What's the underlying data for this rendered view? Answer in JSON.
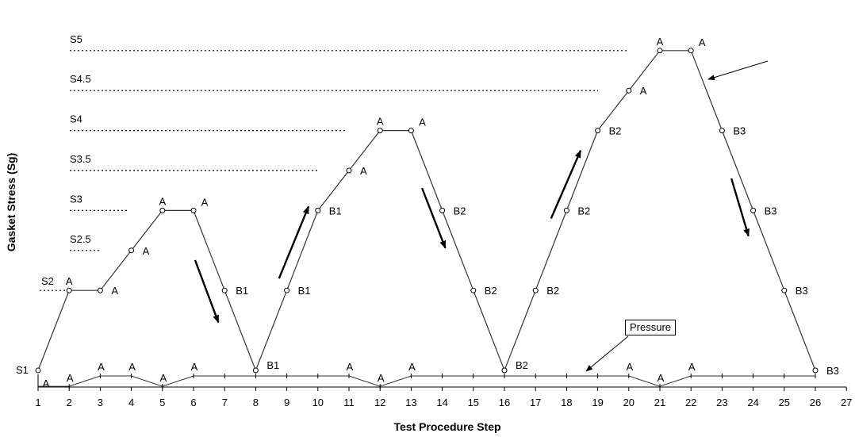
{
  "chart_data": {
    "type": "line",
    "xlabel": "Test Procedure Step",
    "ylabel": "Gasket Stress (Sg)",
    "xlim": [
      1,
      27
    ],
    "x_ticks": [
      1,
      2,
      3,
      4,
      5,
      6,
      7,
      8,
      9,
      10,
      11,
      12,
      13,
      14,
      15,
      16,
      17,
      18,
      19,
      20,
      21,
      22,
      23,
      24,
      25,
      26,
      27
    ],
    "stress_levels": [
      {
        "label": "S1",
        "value": 1.0
      },
      {
        "label": "S2",
        "value": 2.0
      },
      {
        "label": "S2.5",
        "value": 2.5
      },
      {
        "label": "S3",
        "value": 3.0
      },
      {
        "label": "S3.5",
        "value": 3.5
      },
      {
        "label": "S4",
        "value": 4.0
      },
      {
        "label": "S4.5",
        "value": 4.5
      },
      {
        "label": "S5",
        "value": 5.0
      }
    ],
    "series": [
      {
        "name": "",
        "x": [
          1,
          2,
          3,
          4,
          5,
          6,
          7,
          8,
          9,
          10,
          11,
          12,
          13,
          14,
          15,
          16,
          17,
          18,
          19,
          20,
          21,
          22,
          23,
          24,
          25,
          26
        ],
        "y": [
          1.0,
          2.0,
          2.0,
          2.5,
          3.0,
          3.0,
          2.0,
          1.0,
          2.0,
          3.0,
          3.5,
          4.0,
          4.0,
          3.0,
          2.0,
          1.0,
          2.0,
          3.0,
          4.0,
          4.5,
          5.0,
          5.0,
          4.0,
          3.0,
          2.0,
          1.0
        ],
        "point_labels": [
          "",
          "A",
          "A",
          "A",
          "A",
          "A",
          "B1",
          "B1",
          "B1",
          "B1",
          "A",
          "A",
          "A",
          "B2",
          "B2",
          "B2",
          "B2",
          "B2",
          "B2",
          "A",
          "A",
          "A",
          "B3",
          "B3",
          "B3",
          "B3"
        ]
      },
      {
        "name": "Pressure",
        "x": [
          1,
          2,
          3,
          4,
          5,
          6,
          7,
          8,
          9,
          10,
          11,
          12,
          13,
          14,
          15,
          16,
          17,
          18,
          19,
          20,
          21,
          22,
          23,
          24,
          25,
          26
        ],
        "y": [
          0.8,
          0.8,
          0.93,
          0.93,
          0.8,
          0.93,
          0.93,
          0.93,
          0.93,
          0.93,
          0.93,
          0.8,
          0.93,
          0.93,
          0.93,
          0.93,
          0.93,
          0.93,
          0.93,
          0.93,
          0.8,
          0.93,
          0.93,
          0.93,
          0.93,
          0.93
        ],
        "point_labels": [
          "A",
          "A",
          "A",
          "A",
          "A",
          "A",
          "",
          "",
          "",
          "",
          "A",
          "A",
          "A",
          "",
          "",
          "",
          "",
          "",
          "",
          "A",
          "A",
          "A",
          "",
          "",
          "",
          ""
        ]
      }
    ],
    "annotations": {
      "pressure_label": "Pressure",
      "arrows": [
        {
          "from_x": 6.05,
          "from_y": 2.38,
          "to_x": 6.8,
          "to_y": 1.6
        },
        {
          "from_x": 8.75,
          "from_y": 2.15,
          "to_x": 9.7,
          "to_y": 3.05
        },
        {
          "from_x": 13.35,
          "from_y": 3.28,
          "to_x": 14.1,
          "to_y": 2.53
        },
        {
          "from_x": 17.5,
          "from_y": 2.9,
          "to_x": 18.45,
          "to_y": 3.75
        },
        {
          "from_x": 23.3,
          "from_y": 3.4,
          "to_x": 23.85,
          "to_y": 2.68
        }
      ]
    }
  }
}
